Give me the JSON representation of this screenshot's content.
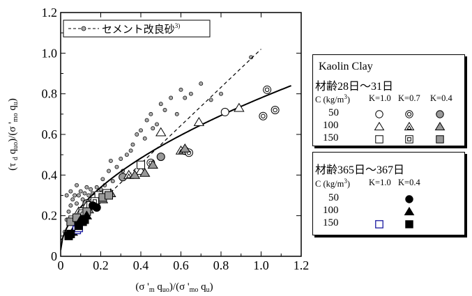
{
  "chart_data": {
    "type": "scatter",
    "xlim": [
      0,
      1.2
    ],
    "ylim": [
      0,
      1.2
    ],
    "xticks": [
      "0",
      "0.2",
      "0.4",
      "0.6",
      "0.8",
      "1.0",
      "1.2"
    ],
    "yticks": [
      "0",
      "0.2",
      "0.4",
      "0.6",
      "0.8",
      "1.0",
      "1.2"
    ],
    "xlabel": "(σ 'm quo)/(σ 'mo qu)",
    "ylabel": "(τ d quo)/(σ 'mo qu)",
    "grid": false,
    "reference_series": {
      "name": "セメント改良砂",
      "citation": "3)",
      "points": [
        [
          0.02,
          0.12
        ],
        [
          0.03,
          0.18
        ],
        [
          0.03,
          0.3
        ],
        [
          0.04,
          0.22
        ],
        [
          0.05,
          0.25
        ],
        [
          0.05,
          0.32
        ],
        [
          0.06,
          0.28
        ],
        [
          0.07,
          0.2
        ],
        [
          0.07,
          0.3
        ],
        [
          0.08,
          0.35
        ],
        [
          0.08,
          0.26
        ],
        [
          0.09,
          0.3
        ],
        [
          0.1,
          0.32
        ],
        [
          0.1,
          0.22
        ],
        [
          0.11,
          0.28
        ],
        [
          0.12,
          0.31
        ],
        [
          0.13,
          0.27
        ],
        [
          0.13,
          0.34
        ],
        [
          0.14,
          0.3
        ],
        [
          0.15,
          0.33
        ],
        [
          0.15,
          0.25
        ],
        [
          0.16,
          0.31
        ],
        [
          0.17,
          0.28
        ],
        [
          0.18,
          0.34
        ],
        [
          0.18,
          0.3
        ],
        [
          0.2,
          0.33
        ],
        [
          0.21,
          0.38
        ],
        [
          0.22,
          0.35
        ],
        [
          0.24,
          0.42
        ],
        [
          0.25,
          0.47
        ],
        [
          0.26,
          0.37
        ],
        [
          0.28,
          0.44
        ],
        [
          0.3,
          0.48
        ],
        [
          0.31,
          0.42
        ],
        [
          0.33,
          0.5
        ],
        [
          0.35,
          0.52
        ],
        [
          0.36,
          0.55
        ],
        [
          0.38,
          0.6
        ],
        [
          0.4,
          0.62
        ],
        [
          0.42,
          0.58
        ],
        [
          0.43,
          0.67
        ],
        [
          0.45,
          0.7
        ],
        [
          0.46,
          0.63
        ],
        [
          0.48,
          0.65
        ],
        [
          0.5,
          0.75
        ],
        [
          0.52,
          0.72
        ],
        [
          0.55,
          0.78
        ],
        [
          0.58,
          0.7
        ],
        [
          0.6,
          0.82
        ],
        [
          0.62,
          0.78
        ],
        [
          0.65,
          0.8
        ],
        [
          0.7,
          0.85
        ],
        [
          0.75,
          0.77
        ],
        [
          0.8,
          0.8
        ],
        [
          0.95,
          0.98
        ]
      ],
      "fit_line": [
        [
          0.0,
          0.08
        ],
        [
          1.0,
          1.02
        ]
      ]
    },
    "fit_curve": {
      "type": "power",
      "a": 0.75,
      "b": 0.55,
      "c": 0.03,
      "x_range": [
        0,
        1.15
      ]
    },
    "series": [
      {
        "group": "材齢28日～31日",
        "C": 50,
        "K": 1.0,
        "marker": "circle-open",
        "points": [
          [
            0.15,
            0.26
          ],
          [
            0.62,
            0.52
          ],
          [
            0.82,
            0.71
          ]
        ]
      },
      {
        "group": "材齢28日～31日",
        "C": 50,
        "K": 0.7,
        "marker": "circle-double",
        "points": [
          [
            0.45,
            0.46
          ],
          [
            0.64,
            0.51
          ],
          [
            1.01,
            0.69
          ],
          [
            1.03,
            0.82
          ],
          [
            1.07,
            0.72
          ]
        ]
      },
      {
        "group": "材齢28日～31日",
        "C": 50,
        "K": 0.4,
        "marker": "circle-gray",
        "points": [
          [
            0.13,
            0.26
          ],
          [
            0.18,
            0.27
          ],
          [
            0.31,
            0.39
          ],
          [
            0.5,
            0.49
          ]
        ]
      },
      {
        "group": "材齢28日～31日",
        "C": 100,
        "K": 1.0,
        "marker": "triangle-open",
        "points": [
          [
            0.13,
            0.25
          ],
          [
            0.4,
            0.42
          ],
          [
            0.5,
            0.61
          ],
          [
            0.69,
            0.66
          ],
          [
            0.89,
            0.73
          ]
        ]
      },
      {
        "group": "材齢28日～31日",
        "C": 100,
        "K": 0.7,
        "marker": "triangle-double",
        "points": [
          [
            0.09,
            0.22
          ],
          [
            0.34,
            0.4
          ],
          [
            0.6,
            0.52
          ]
        ]
      },
      {
        "group": "材齢28日～31日",
        "C": 100,
        "K": 0.4,
        "marker": "triangle-gray",
        "points": [
          [
            0.14,
            0.23
          ],
          [
            0.21,
            0.28
          ],
          [
            0.25,
            0.31
          ],
          [
            0.37,
            0.4
          ],
          [
            0.42,
            0.41
          ],
          [
            0.46,
            0.45
          ],
          [
            0.62,
            0.53
          ]
        ]
      },
      {
        "group": "材齢28日～31日",
        "C": 150,
        "K": 1.0,
        "marker": "square-open",
        "points": [
          [
            0.06,
            0.18
          ],
          [
            0.11,
            0.22
          ],
          [
            0.15,
            0.25
          ],
          [
            0.19,
            0.3
          ],
          [
            0.4,
            0.45
          ]
        ]
      },
      {
        "group": "材齢28日～31日",
        "C": 150,
        "K": 0.7,
        "marker": "square-double",
        "points": [
          [
            0.11,
            0.21
          ],
          [
            0.17,
            0.27
          ],
          [
            0.23,
            0.31
          ]
        ]
      },
      {
        "group": "材齢28日～31日",
        "C": 150,
        "K": 0.4,
        "marker": "square-gray",
        "points": [
          [
            0.05,
            0.17
          ],
          [
            0.08,
            0.19
          ],
          [
            0.13,
            0.22
          ],
          [
            0.21,
            0.29
          ],
          [
            0.24,
            0.3
          ]
        ]
      },
      {
        "group": "材齢365日～367日",
        "C": 50,
        "K": 0.4,
        "marker": "circle-filled",
        "points": [
          [
            0.16,
            0.25
          ],
          [
            0.18,
            0.24
          ]
        ]
      },
      {
        "group": "材齢365日～367日",
        "C": 100,
        "K": 0.4,
        "marker": "triangle-filled",
        "points": [
          [
            0.06,
            0.12
          ],
          [
            0.1,
            0.18
          ],
          [
            0.13,
            0.2
          ]
        ]
      },
      {
        "group": "材齢365日～367日",
        "C": 150,
        "K": 1.0,
        "marker": "square-blue",
        "points": [
          [
            0.08,
            0.13
          ],
          [
            0.09,
            0.14
          ]
        ]
      },
      {
        "group": "材齢365日～367日",
        "C": 150,
        "K": 0.4,
        "marker": "square-filled",
        "points": [
          [
            0.04,
            0.1
          ],
          [
            0.05,
            0.11
          ],
          [
            0.09,
            0.15
          ],
          [
            0.11,
            0.17
          ],
          [
            0.12,
            0.18
          ]
        ]
      }
    ]
  },
  "legend_inner": {
    "label": "セメント改良砂",
    "sup": "3)"
  },
  "legend1": {
    "title": "Kaolin Clay",
    "subtitle": "材齢28日～31日",
    "head_c": "C (kg/m",
    "head_sup": "3",
    "head_rest": ")",
    "k_labels": [
      "K=1.0",
      "K=0.7",
      "K=0.4"
    ],
    "rows": [
      "50",
      "100",
      "150"
    ],
    "markers": [
      [
        "circle-open",
        "circle-double",
        "circle-gray"
      ],
      [
        "triangle-open",
        "triangle-double",
        "triangle-gray"
      ],
      [
        "square-open",
        "square-double",
        "square-gray"
      ]
    ]
  },
  "legend2": {
    "subtitle": "材齢365日～367日",
    "head_c": "C (kg/m",
    "head_sup": "3",
    "head_rest": ")",
    "k_labels": [
      "K=1.0",
      "K=0.4"
    ],
    "rows": [
      "50",
      "100",
      "150"
    ],
    "markers": [
      [
        "",
        "circle-filled"
      ],
      [
        "",
        "triangle-filled"
      ],
      [
        "square-blue",
        "square-filled"
      ]
    ]
  },
  "colors": {
    "gray_fill": "#999999",
    "ref_fill": "#aaaaaa",
    "blue_square": "#1a1aa0",
    "black": "#000000"
  }
}
